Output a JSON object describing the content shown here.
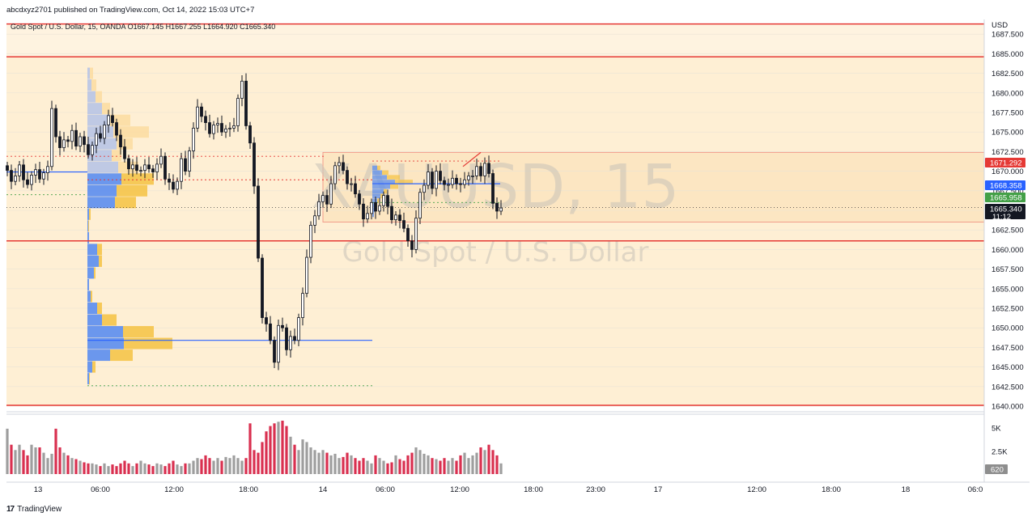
{
  "header": {
    "publish_line": "abcdxyz2701 published on TradingView.com, Oct 14, 2022 15:03 UTC+7",
    "symbol_line": "Gold Spot / U.S. Dollar, 15, OANDA  O1667.145  H1667.255  L1664.920  C1665.340"
  },
  "watermark": {
    "symbol": "XAUUSD, 15",
    "description": "Gold Spot / U.S. Dollar"
  },
  "footer": {
    "brand": "TradingView"
  },
  "colors": {
    "zone_fill": "#fde9c6",
    "level_line": "#e53935",
    "candle": "#131722",
    "profile_blue": "#5b8def",
    "profile_yellow": "#f5c242",
    "poc_line": "#2962ff",
    "volume_gray": "#9e9e9e",
    "volume_red": "#d9304f"
  },
  "chart_data": {
    "type": "candlestick",
    "currency": "USD",
    "y_axis": {
      "range": [
        1639,
        1688.5
      ],
      "ticks": [
        "1687.500",
        "1685.000",
        "1682.500",
        "1680.000",
        "1677.500",
        "1675.000",
        "1672.500",
        "1670.000",
        "1667.500",
        "1665.000",
        "1662.500",
        "1660.000",
        "1657.500",
        "1655.000",
        "1652.500",
        "1650.000",
        "1647.500",
        "1645.000",
        "1642.500",
        "1640.000"
      ]
    },
    "x_axis": {
      "ticks": [
        "13",
        "06:00",
        "12:00",
        "18:00",
        "14",
        "06:00",
        "12:00",
        "18:00",
        "23:00",
        "17",
        "12:00",
        "18:00",
        "18",
        "06:0"
      ]
    },
    "price_labels": [
      {
        "value": "1671.292",
        "color": "#e53935"
      },
      {
        "value": "1668.358",
        "color": "#2962ff"
      },
      {
        "value": "1665.958",
        "color": "#43a047"
      },
      {
        "value": "1665.340",
        "color": "#131722",
        "countdown": "11:12"
      }
    ],
    "levels": [
      1688.8,
      1684.6,
      1661.1,
      1640.1
    ],
    "zone": {
      "top": 1684.6,
      "bottom": 1640.1
    },
    "box": {
      "top": 1672.4,
      "bottom": 1663.5
    },
    "closes": [
      1670.1,
      1668.7,
      1669.4,
      1670.8,
      1668.9,
      1668.3,
      1669.5,
      1670.2,
      1669.0,
      1669.8,
      1670.6,
      1678.0,
      1674.4,
      1673.0,
      1674.0,
      1673.8,
      1675.2,
      1673.2,
      1674.4,
      1673.4,
      1672.1,
      1673.3,
      1674.8,
      1674.2,
      1675.9,
      1677.1,
      1676.2,
      1674.6,
      1673.1,
      1671.6,
      1670.3,
      1670.8,
      1670.1,
      1670.1,
      1670.8,
      1670.3,
      1669.9,
      1670.9,
      1671.9,
      1669.0,
      1668.6,
      1667.7,
      1668.7,
      1671.6,
      1670.0,
      1672.6,
      1675.5,
      1678.2,
      1677.0,
      1676.2,
      1674.8,
      1675.9,
      1676.1,
      1675.0,
      1675.4,
      1675.5,
      1675.8,
      1679.3,
      1681.5,
      1675.8,
      1673.6,
      1668.1,
      1658.9,
      1651.3,
      1650.5,
      1648.4,
      1645.6,
      1650.3,
      1650.0,
      1647.2,
      1648.9,
      1648.4,
      1651.3,
      1654.4,
      1659.0,
      1663.1,
      1664.3,
      1666.1,
      1666.9,
      1665.8,
      1668.4,
      1670.7,
      1671.1,
      1670.1,
      1668.4,
      1668.4,
      1667.1,
      1665.8,
      1663.9,
      1664.6,
      1666.0,
      1664.9,
      1665.6,
      1666.9,
      1665.5,
      1663.8,
      1664.4,
      1663.7,
      1662.7,
      1661.1,
      1660.0,
      1664.0,
      1667.3,
      1668.2,
      1669.9,
      1667.8,
      1670.0,
      1668.8,
      1668.3,
      1668.3,
      1669.1,
      1668.4,
      1668.3,
      1668.9,
      1669.4,
      1669.4,
      1670.6,
      1669.4,
      1671.0,
      1669.7,
      1665.9,
      1664.9,
      1665.3
    ],
    "volume_ratio": [
      0.85,
      0.55,
      0.45,
      0.55,
      0.45,
      0.35,
      0.55,
      0.5,
      0.5,
      0.4,
      0.3,
      0.38,
      0.85,
      0.5,
      0.4,
      0.35,
      0.3,
      0.28,
      0.25,
      0.22,
      0.2,
      0.2,
      0.18,
      0.15,
      0.2,
      0.15,
      0.18,
      0.15,
      0.2,
      0.25,
      0.2,
      0.15,
      0.2,
      0.25,
      0.2,
      0.18,
      0.15,
      0.2,
      0.18,
      0.15,
      0.2,
      0.25,
      0.18,
      0.15,
      0.2,
      0.2,
      0.25,
      0.3,
      0.28,
      0.35,
      0.3,
      0.25,
      0.3,
      0.25,
      0.32,
      0.3,
      0.35,
      0.3,
      0.25,
      0.3,
      0.95,
      0.45,
      0.4,
      0.6,
      0.8,
      0.9,
      0.95,
      0.98,
      1.0,
      0.9,
      0.7,
      0.55,
      0.45,
      0.65,
      0.6,
      0.5,
      0.45,
      0.4,
      0.45,
      0.4,
      0.35,
      0.38,
      0.3,
      0.32,
      0.4,
      0.35,
      0.3,
      0.25,
      0.3,
      0.25,
      0.2,
      0.35,
      0.3,
      0.25,
      0.2,
      0.22,
      0.35,
      0.28,
      0.25,
      0.35,
      0.4,
      0.5,
      0.45,
      0.38,
      0.35,
      0.3,
      0.28,
      0.25,
      0.3,
      0.25,
      0.3,
      0.25,
      0.35,
      0.4,
      0.3,
      0.35,
      0.4,
      0.5,
      0.45,
      0.55,
      0.45,
      0.35,
      0.2
    ],
    "volume_axis": {
      "ticks": [
        "5K",
        "2.5K"
      ],
      "current": "620"
    }
  }
}
